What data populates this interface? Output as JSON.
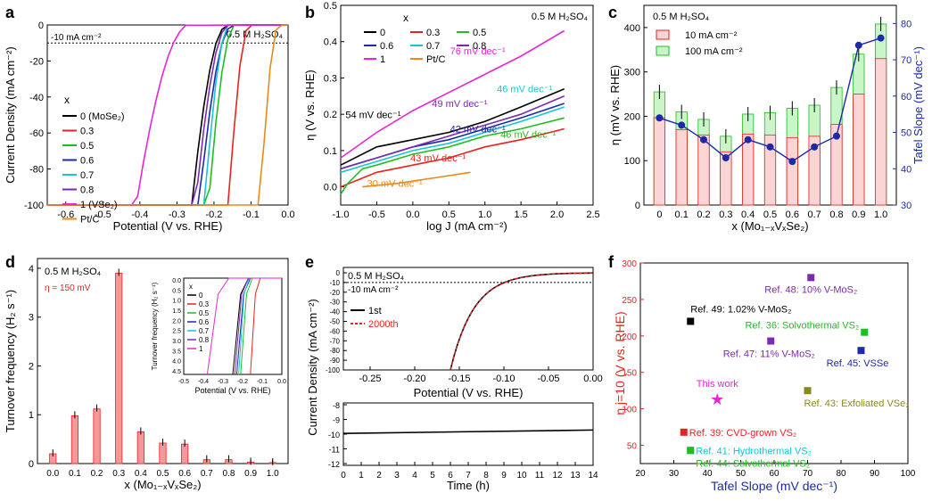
{
  "colors": {
    "c0": "#000000",
    "c03": "#e8231f",
    "c05": "#1fbe1f",
    "c06": "#1c2aa8",
    "c07": "#17c4d8",
    "c08": "#7b2ab0",
    "c1": "#e626d4",
    "cpt": "#e88a1a",
    "blue": "#1c2aa8",
    "red": "#e8231f",
    "green": "#1fbe1f",
    "purple": "#7b2ab0",
    "cyan": "#17c4d8",
    "olive": "#8a8a1a",
    "magenta": "#e626d4",
    "barred": "#f29a9a"
  },
  "chart_data": [
    {
      "panel": "a",
      "type": "line",
      "annotation": "0.5 M H₂SO₄",
      "ref_line": "-10 mA cm⁻²",
      "xlabel": "Potential (V vs. RHE)",
      "ylabel": "Current Density (mA cm⁻²)",
      "xlim": [
        -0.65,
        0.0
      ],
      "ylim": [
        -100,
        0
      ],
      "xticks": [
        "-0.6",
        "-0.5",
        "-0.4",
        "-0.3",
        "-0.2",
        "-0.1",
        "0.0"
      ],
      "yticks": [
        "0",
        "-20",
        "-40",
        "-60",
        "-80",
        "-100"
      ],
      "legend_title": "x",
      "series": [
        {
          "name": "0 (MoSe₂)",
          "color": "c0",
          "onset": -0.175,
          "x100": -0.26
        },
        {
          "name": "0.3",
          "color": "c03",
          "onset": -0.11,
          "x100": -0.16
        },
        {
          "name": "0.5",
          "color": "c05",
          "onset": -0.15,
          "x100": -0.215
        },
        {
          "name": "0.6",
          "color": "c06",
          "onset": -0.16,
          "x100": -0.24
        },
        {
          "name": "0.7",
          "color": "c07",
          "onset": -0.165,
          "x100": -0.225
        },
        {
          "name": "0.8",
          "color": "c08",
          "onset": -0.17,
          "x100": -0.25
        },
        {
          "name": "1 (VSe₂)",
          "color": "c1",
          "onset": -0.28,
          "x100": -0.41
        },
        {
          "name": "Pt/C",
          "color": "cpt",
          "onset": -0.03,
          "x100": -0.075
        }
      ]
    },
    {
      "panel": "b",
      "type": "line",
      "annotation": "0.5 M H₂SO₄",
      "xlabel": "log J (mA cm⁻²)",
      "ylabel": "η (V vs. RHE)",
      "xlim": [
        -1.0,
        2.5
      ],
      "ylim": [
        -0.05,
        0.5
      ],
      "xticks": [
        "-1.0",
        "-0.5",
        "0.0",
        "0.5",
        "1.0",
        "1.5",
        "2.0",
        "2.5"
      ],
      "yticks": [
        "0.0",
        "0.1",
        "0.2",
        "0.3",
        "0.4",
        "0.5"
      ],
      "legend_title": "x",
      "legend": [
        {
          "name": "0",
          "color": "c0"
        },
        {
          "name": "0.3",
          "color": "c03"
        },
        {
          "name": "0.5",
          "color": "c05"
        },
        {
          "name": "0.6",
          "color": "c06"
        },
        {
          "name": "0.7",
          "color": "c07"
        },
        {
          "name": "0.8",
          "color": "c08"
        },
        {
          "name": "1",
          "color": "c1"
        },
        {
          "name": "Pt/C",
          "color": "cpt"
        }
      ],
      "series": [
        {
          "name": "0",
          "color": "c0",
          "x": [
            -1.0,
            -0.5,
            0.0,
            0.5,
            1.0,
            1.5,
            2.1
          ],
          "y": [
            0.06,
            0.11,
            0.13,
            0.15,
            0.18,
            0.22,
            0.27
          ]
        },
        {
          "name": "0.3",
          "color": "c03",
          "x": [
            -1.0,
            -0.5,
            0.0,
            0.5,
            1.0,
            1.5,
            2.1
          ],
          "y": [
            0.0,
            0.04,
            0.06,
            0.08,
            0.11,
            0.13,
            0.16
          ]
        },
        {
          "name": "0.5",
          "color": "c05",
          "x": [
            -1.0,
            -0.9,
            -0.7,
            -0.5,
            0.0,
            0.5,
            1.0,
            1.5,
            2.1
          ],
          "y": [
            -0.02,
            0.01,
            0.05,
            0.06,
            0.09,
            0.11,
            0.14,
            0.16,
            0.19
          ]
        },
        {
          "name": "0.6",
          "color": "c06",
          "x": [
            -1.0,
            -0.5,
            0.0,
            0.5,
            1.0,
            1.5,
            2.1
          ],
          "y": [
            0.05,
            0.08,
            0.11,
            0.13,
            0.16,
            0.19,
            0.23
          ]
        },
        {
          "name": "0.7",
          "color": "c07",
          "x": [
            -1.0,
            -0.5,
            0.0,
            0.5,
            1.0,
            1.5,
            2.1
          ],
          "y": [
            0.04,
            0.07,
            0.1,
            0.12,
            0.15,
            0.18,
            0.22
          ]
        },
        {
          "name": "0.8",
          "color": "c08",
          "x": [
            -1.0,
            -0.5,
            0.0,
            0.5,
            1.0,
            1.5,
            2.1
          ],
          "y": [
            0.05,
            0.08,
            0.11,
            0.14,
            0.17,
            0.2,
            0.25
          ]
        },
        {
          "name": "1",
          "color": "c1",
          "x": [
            -1.0,
            -0.5,
            0.0,
            0.5,
            1.0,
            1.5,
            2.1
          ],
          "y": [
            0.08,
            0.15,
            0.21,
            0.26,
            0.31,
            0.36,
            0.43
          ]
        },
        {
          "name": "Pt/C",
          "color": "cpt",
          "x": [
            -0.7,
            -0.2,
            0.3,
            0.8
          ],
          "y": [
            0.0,
            0.01,
            0.025,
            0.04
          ]
        }
      ],
      "tafel_labels": [
        {
          "text": "76 mV dec⁻¹",
          "color": "c1",
          "x": 0.9,
          "y": 0.365
        },
        {
          "text": "49 mV dec⁻¹",
          "color": "c08",
          "x": 0.65,
          "y": 0.22
        },
        {
          "text": "54 mV dec⁻¹",
          "color": "c0",
          "x": -0.55,
          "y": 0.19
        },
        {
          "text": "46 mV dec⁻¹",
          "color": "c07",
          "x": 1.55,
          "y": 0.26
        },
        {
          "text": "42 mV dec⁻¹",
          "color": "c06",
          "x": 0.9,
          "y": 0.15
        },
        {
          "text": "46 mV dec⁻¹",
          "color": "c05",
          "x": 1.6,
          "y": 0.135
        },
        {
          "text": "43 mV dec⁻¹",
          "color": "c03",
          "x": 0.35,
          "y": 0.07
        },
        {
          "text": "30 mV dec⁻¹",
          "color": "cpt",
          "x": -0.25,
          "y": 0.0
        }
      ]
    },
    {
      "panel": "c",
      "type": "bar",
      "annotation": "0.5 M H₂SO₄",
      "xlabel": "x (Mo₁₋ₓVₓSe₂)",
      "ylabel": "η (mV vs. RHE)",
      "y2label": "Tafel Slope (mV dec⁻¹)",
      "categories": [
        "0",
        "0.1",
        "0.2",
        "0.3",
        "0.4",
        "0.5",
        "0.6",
        "0.7",
        "0.8",
        "0.9",
        "1.0"
      ],
      "ylim": [
        0,
        450
      ],
      "y2lim": [
        30,
        85
      ],
      "yticks": [
        "0",
        "100",
        "200",
        "300",
        "400"
      ],
      "y2ticks": [
        "30",
        "40",
        "50",
        "60",
        "70",
        "80"
      ],
      "legend": [
        "10 mA cm⁻²",
        "100 mA cm⁻²"
      ],
      "eta10": [
        197,
        170,
        158,
        120,
        160,
        158,
        152,
        155,
        182,
        250,
        330
      ],
      "eta100": [
        255,
        210,
        193,
        155,
        205,
        208,
        218,
        225,
        265,
        340,
        408
      ],
      "tafel": [
        54,
        52,
        48,
        43,
        48,
        46,
        42,
        46,
        49,
        74,
        76
      ]
    },
    {
      "panel": "d",
      "type": "bar",
      "annotation": "0.5 M H₂SO₄",
      "sub_annotation": "η = 150 mV",
      "xlabel": "x (Mo₁₋ₓVₓSe₂)",
      "ylabel": "Turnover frequency (H₂ s⁻¹)",
      "categories": [
        "0.0",
        "0.1",
        "0.2",
        "0.3",
        "0.4",
        "0.5",
        "0.6",
        "0.7",
        "0.8",
        "0.9",
        "1.0"
      ],
      "values": [
        0.2,
        0.98,
        1.12,
        3.9,
        0.65,
        0.42,
        0.4,
        0.08,
        0.08,
        0.03,
        0.02
      ],
      "ylim": [
        0,
        4.2
      ],
      "yticks": [
        "0",
        "1",
        "2",
        "3",
        "4"
      ],
      "inset": {
        "xlabel": "Potential (V vs. RHE)",
        "ylabel": "Turnover frequency (H₂ s⁻¹)",
        "xticks": [
          "-0.5",
          "-0.4",
          "-0.3",
          "-0.2",
          "-0.1",
          "0.0"
        ],
        "yticks": [
          "0.0",
          "0.5",
          "1.0",
          "1.5",
          "2.0",
          "2.5",
          "3.0",
          "3.5",
          "4.0",
          "4.5"
        ],
        "legend_title": "x",
        "legend": [
          {
            "name": "0",
            "color": "c0"
          },
          {
            "name": "0.3",
            "color": "c03"
          },
          {
            "name": "0.5",
            "color": "c05"
          },
          {
            "name": "0.6",
            "color": "c06"
          },
          {
            "name": "0.7",
            "color": "c07"
          },
          {
            "name": "0.8",
            "color": "c08"
          },
          {
            "name": "1",
            "color": "c1"
          }
        ]
      }
    },
    {
      "panel": "e",
      "type": "line",
      "annotation": "0.5 M H₂SO₄",
      "ref_line": "-10 mA cm⁻²",
      "xlabel_top": "Potential (V vs. RHE)",
      "xlabel": "Time (h)",
      "ylabel": "Current Density (mA cm⁻²)",
      "xticks_top": [
        "-0.25",
        "-0.20",
        "-0.15",
        "-0.10",
        "-0.05",
        "0.00"
      ],
      "yticks_top": [
        "0",
        "-10",
        "-20",
        "-30",
        "-40",
        "-50",
        "-60",
        "-70",
        "-80",
        "-90",
        "-100"
      ],
      "xticks": [
        "0",
        "1",
        "2",
        "3",
        "4",
        "5",
        "6",
        "7",
        "8",
        "9",
        "10",
        "11",
        "12",
        "13",
        "14"
      ],
      "yticks": [
        "-8",
        "-9",
        "-10",
        "-11",
        "-12"
      ],
      "legend": [
        {
          "name": "1st",
          "color": "c0"
        },
        {
          "name": "2000th",
          "color": "c03"
        }
      ]
    },
    {
      "panel": "f",
      "type": "scatter",
      "xlabel": "Tafel Slope (mV dec⁻¹)",
      "ylabel": "η j=10 (V vs. RHE)",
      "xlim": [
        20,
        100
      ],
      "ylim": [
        25,
        300
      ],
      "xticks": [
        "20",
        "30",
        "40",
        "50",
        "60",
        "70",
        "80",
        "90",
        "100"
      ],
      "yticks": [
        "50",
        "100",
        "150",
        "200",
        "250",
        "300"
      ],
      "points": [
        {
          "label": "Ref. 48: 10% V-MoS₂",
          "x": 71,
          "y": 280,
          "color": "purple"
        },
        {
          "label": "Ref. 36: Solvothermal VS₂",
          "x": 87,
          "y": 205,
          "color": "green"
        },
        {
          "label": "Ref. 49: 1.02% V-MoS₂",
          "x": 35,
          "y": 220,
          "color": "c0"
        },
        {
          "label": "Ref. 47: 11% V-MoS₂",
          "x": 59,
          "y": 193,
          "color": "purple"
        },
        {
          "label": "Ref. 45: VSSe",
          "x": 86,
          "y": 180,
          "color": "blue"
        },
        {
          "label": "This work",
          "x": 43,
          "y": 113,
          "color": "magenta"
        },
        {
          "label": "Ref. 43: Exfoliated VSe₂",
          "x": 70,
          "y": 125,
          "color": "olive"
        },
        {
          "label": "Ref. 39: CVD-grown VS₂",
          "x": 33,
          "y": 68,
          "color": "red"
        },
        {
          "label": "Ref. 41: Hydrothermal VS₂",
          "x": 35,
          "y": 43,
          "color": "cyan"
        },
        {
          "label": "Ref. 44: Solvothermal VS₂",
          "x": 35,
          "y": 43,
          "color": "green"
        }
      ]
    }
  ]
}
